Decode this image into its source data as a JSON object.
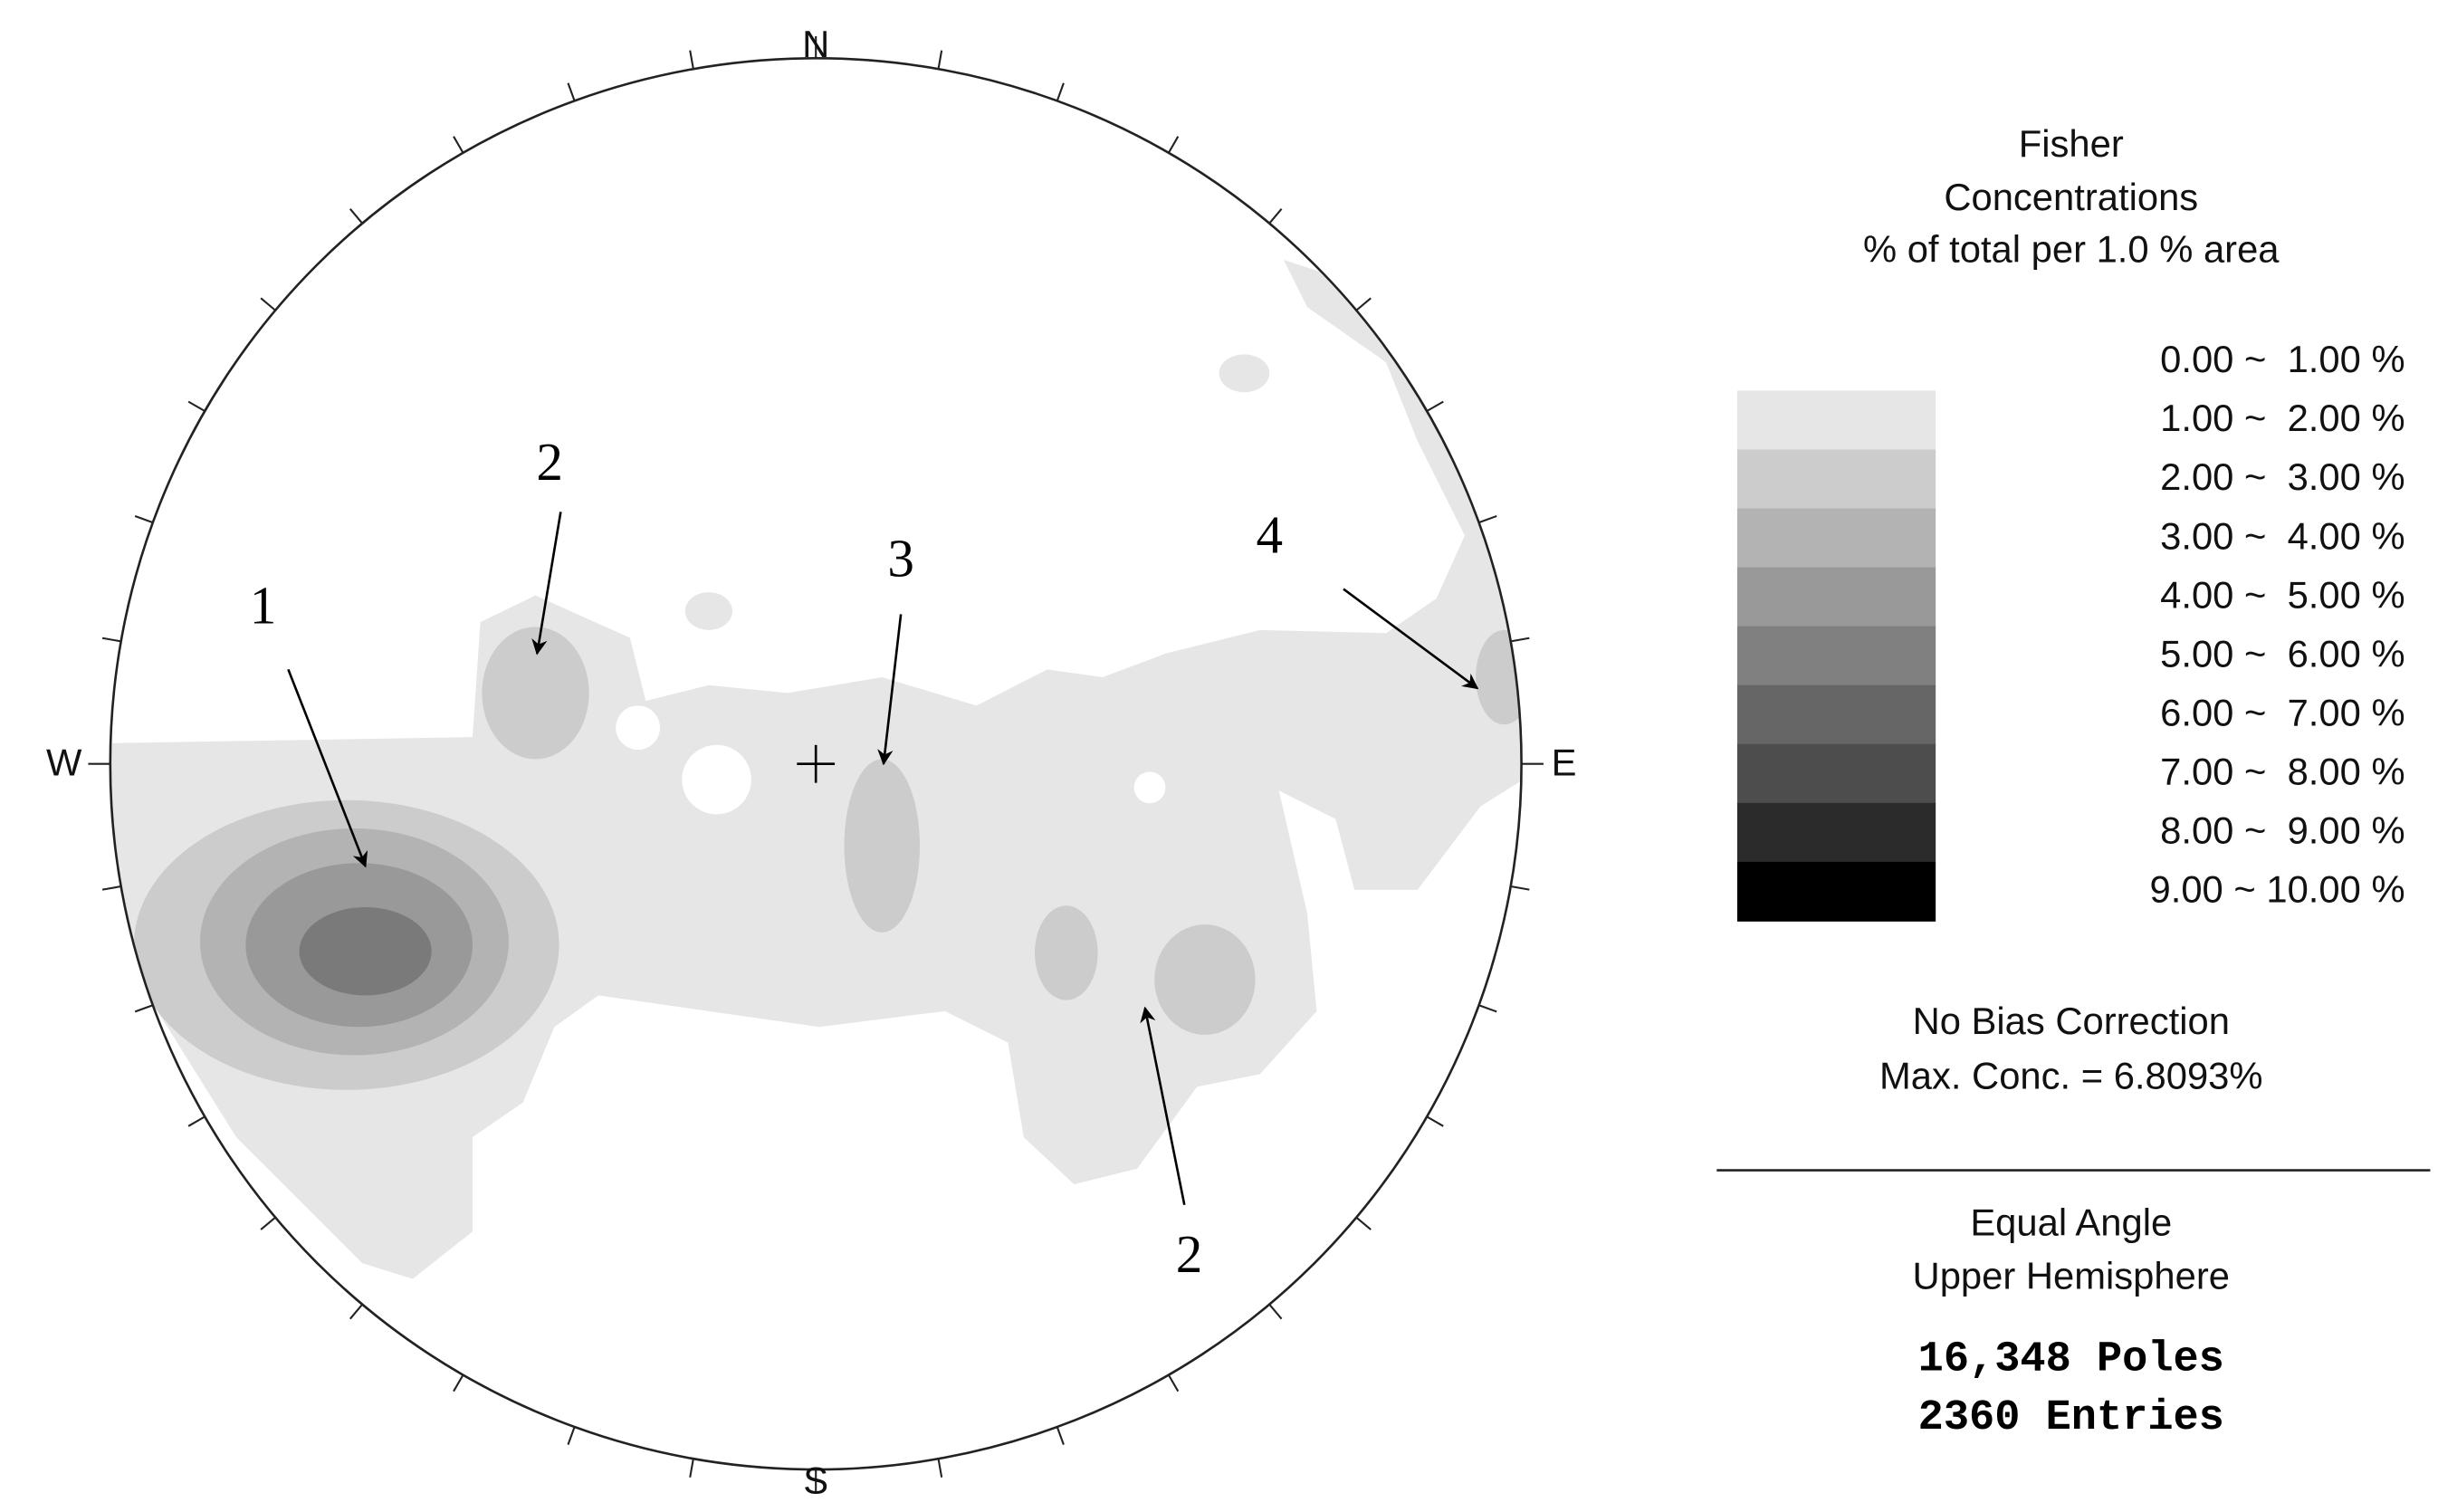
{
  "compass": {
    "north": "N",
    "south": "S",
    "east": "E",
    "west": "W"
  },
  "annotations": [
    "1",
    "2",
    "3",
    "4",
    "2"
  ],
  "legend": {
    "title": [
      "Fisher",
      "Concentrations",
      "% of total per 1.0 % area"
    ],
    "ranges": [
      "0.00 ~  1.00 %",
      "1.00 ~  2.00 %",
      "2.00 ~  3.00 %",
      "3.00 ~  4.00 %",
      "4.00 ~  5.00 %",
      "5.00 ~  6.00 %",
      "6.00 ~  7.00 %",
      "7.00 ~  8.00 %",
      "8.00 ~  9.00 %",
      "9.00 ~ 10.00 %"
    ]
  },
  "notes": [
    "No Bias Correction",
    "Max. Conc. = 6.8093%"
  ],
  "projection": [
    "Equal Angle",
    "Upper Hemisphere"
  ],
  "counts": [
    "16,348 Poles",
    "2360 Entries"
  ]
}
